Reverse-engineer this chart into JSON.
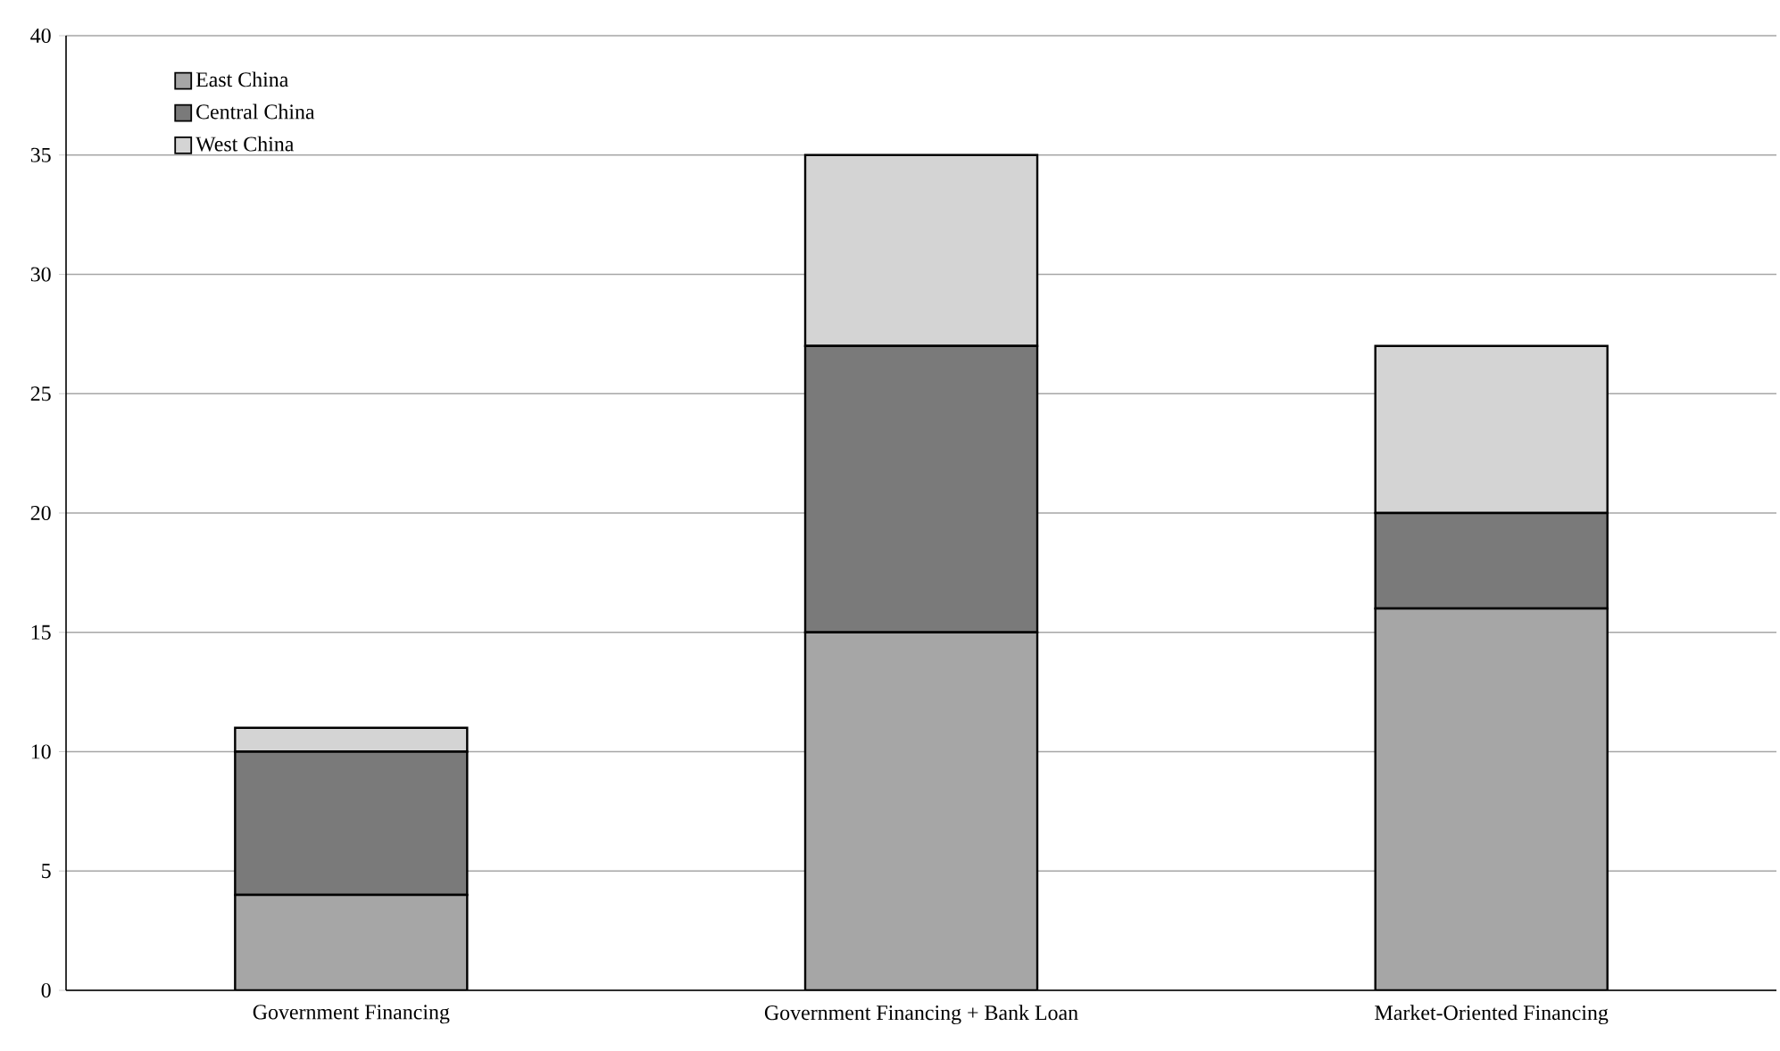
{
  "chart_data": {
    "type": "bar",
    "stacked": true,
    "categories": [
      "Government Financing",
      "Government Financing + Bank Loan",
      "Market-Oriented Financing"
    ],
    "series": [
      {
        "name": "East China",
        "color": "#a6a6a6",
        "values": [
          4,
          15,
          16
        ]
      },
      {
        "name": "Central China",
        "color": "#7a7a7a",
        "values": [
          6,
          12,
          4
        ]
      },
      {
        "name": "West China",
        "color": "#d4d4d4",
        "values": [
          1,
          8,
          7
        ]
      }
    ],
    "ylim": [
      0,
      40
    ],
    "yticks": [
      0,
      5,
      10,
      15,
      20,
      25,
      30,
      35,
      40
    ],
    "grid": "y",
    "legend": "top left"
  }
}
